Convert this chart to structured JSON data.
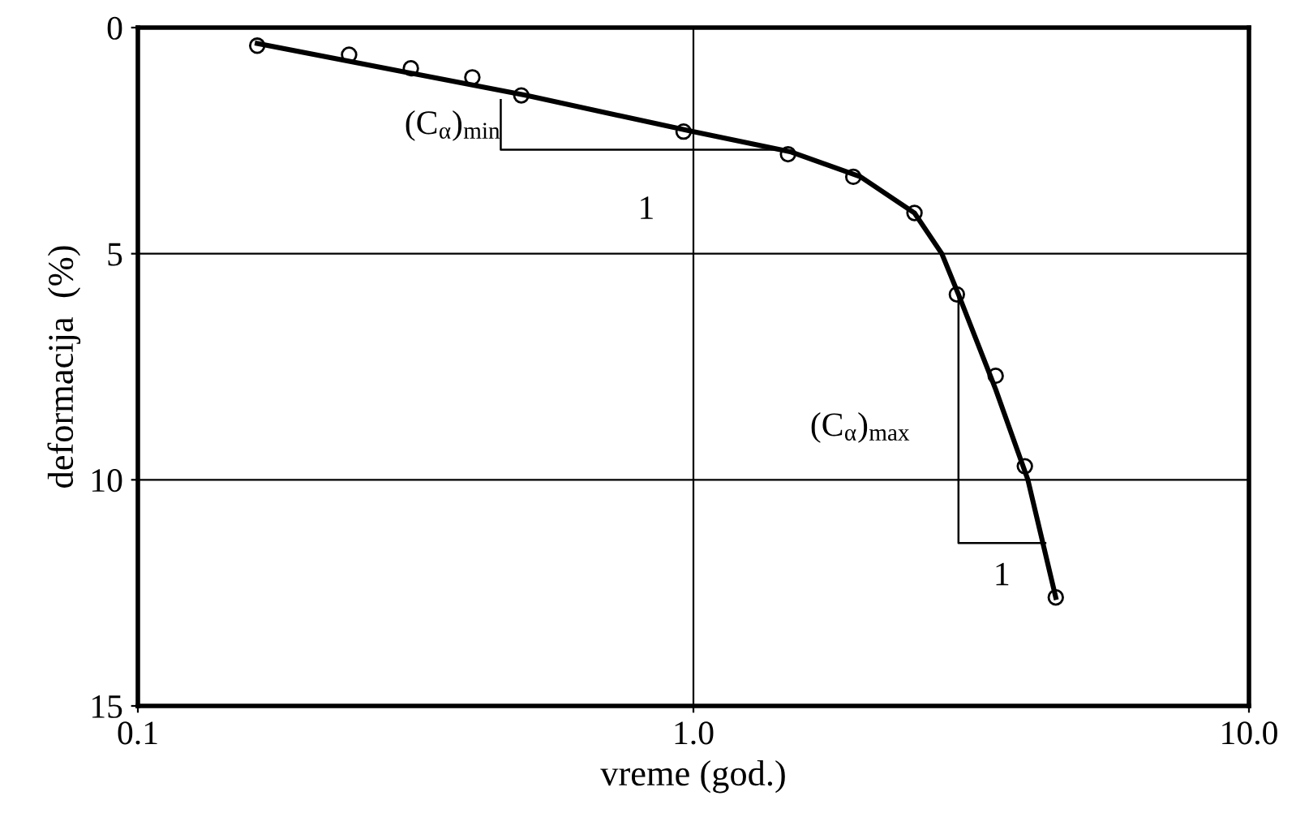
{
  "chart_data": {
    "type": "scatter",
    "xlabel": "vreme (god.)",
    "ylabel": "deformacija  (%)",
    "log": "x",
    "xlim": [
      0.1,
      10
    ],
    "xticks": [
      0.1,
      {
        "value": 1,
        "label": "1.0"
      },
      {
        "value": 10,
        "label": "10.0"
      }
    ],
    "ylim": [
      15,
      0
    ],
    "yticks": [
      0,
      5,
      10,
      15
    ],
    "grid": true,
    "legend": false,
    "series": [
      {
        "marker": "circle",
        "color": "#000000",
        "x": [
          0.164,
          0.24,
          0.31,
          0.4,
          0.49,
          0.96,
          1.48,
          1.94,
          2.5,
          2.98,
          3.5,
          3.95,
          4.49
        ],
        "values": [
          0.4,
          0.6,
          0.9,
          1.1,
          1.5,
          2.3,
          2.8,
          3.3,
          4.1,
          5.9,
          7.7,
          9.7,
          12.6
        ]
      },
      {
        "type": "line",
        "marker": "none",
        "color": "#000000",
        "x": [
          0.164,
          0.5,
          1.0,
          1.5,
          2.0,
          2.5,
          2.8,
          3.0,
          3.5,
          4.0,
          4.49
        ],
        "values": [
          0.35,
          1.5,
          2.3,
          2.75,
          3.3,
          4.1,
          5.0,
          5.9,
          8.0,
          10.0,
          12.6
        ]
      },
      {
        "type": "line",
        "marker": "none",
        "color": "#000000",
        "x": [
          0.45,
          0.45,
          1.45
        ],
        "values": [
          1.6,
          2.7,
          2.7
        ]
      },
      {
        "type": "line",
        "marker": "none",
        "color": "#000000",
        "x": [
          3.0,
          3.0,
          4.3
        ],
        "values": [
          5.9,
          11.4,
          11.4
        ]
      }
    ],
    "annotations": [
      "(C$_{α}$)$_{min}$",
      "1",
      "(C$_{α}$)$_{max}$",
      "1"
    ]
  }
}
